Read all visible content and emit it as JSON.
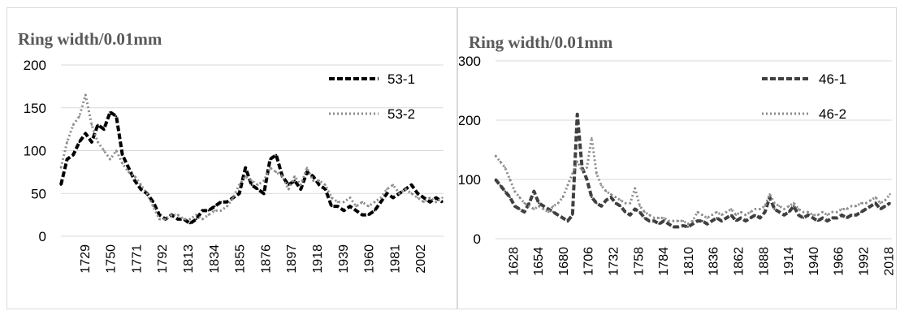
{
  "chart_data": [
    {
      "type": "line",
      "title": "Ring width/0.01mm",
      "xlabel": "",
      "ylabel": "Ring width/0.01mm",
      "ylim": [
        0,
        200
      ],
      "yticks": [
        "0",
        "50",
        "100",
        "150",
        "200"
      ],
      "x_tick_labels": [
        "1729",
        "1750",
        "1771",
        "1792",
        "1813",
        "1834",
        "1855",
        "1876",
        "1897",
        "1918",
        "1939",
        "1960",
        "1981",
        "2002"
      ],
      "xlim": [
        1710,
        2021
      ],
      "legend_position": "top-right",
      "grid": true,
      "series": [
        {
          "name": "53-1",
          "style": "dashed",
          "color": "#000000",
          "x": [
            1710,
            1715,
            1720,
            1725,
            1730,
            1735,
            1740,
            1745,
            1750,
            1755,
            1760,
            1765,
            1770,
            1775,
            1780,
            1785,
            1790,
            1795,
            1800,
            1805,
            1810,
            1815,
            1820,
            1825,
            1830,
            1835,
            1840,
            1845,
            1850,
            1855,
            1860,
            1865,
            1870,
            1875,
            1880,
            1885,
            1890,
            1895,
            1900,
            1905,
            1910,
            1915,
            1920,
            1925,
            1930,
            1935,
            1940,
            1945,
            1950,
            1955,
            1960,
            1965,
            1970,
            1975,
            1980,
            1985,
            1990,
            1995,
            2000,
            2005,
            2010,
            2015,
            2020
          ],
          "values": [
            60,
            90,
            95,
            110,
            120,
            110,
            130,
            125,
            145,
            140,
            95,
            80,
            65,
            55,
            50,
            40,
            25,
            20,
            25,
            20,
            20,
            15,
            20,
            30,
            30,
            35,
            40,
            40,
            45,
            50,
            80,
            60,
            55,
            50,
            90,
            95,
            70,
            60,
            65,
            55,
            75,
            70,
            60,
            55,
            35,
            35,
            30,
            35,
            30,
            25,
            25,
            30,
            40,
            50,
            45,
            50,
            55,
            60,
            50,
            45,
            40,
            45,
            40
          ]
        },
        {
          "name": "53-2",
          "style": "dotted",
          "color": "#8c8c8c",
          "x": [
            1710,
            1715,
            1720,
            1725,
            1730,
            1735,
            1740,
            1745,
            1750,
            1755,
            1760,
            1765,
            1770,
            1775,
            1780,
            1785,
            1790,
            1795,
            1800,
            1805,
            1810,
            1815,
            1820,
            1825,
            1830,
            1835,
            1840,
            1845,
            1850,
            1855,
            1860,
            1865,
            1870,
            1875,
            1880,
            1885,
            1890,
            1895,
            1900,
            1905,
            1910,
            1915,
            1920,
            1925,
            1930,
            1935,
            1940,
            1945,
            1950,
            1955,
            1960,
            1965,
            1970,
            1975,
            1980,
            1985,
            1990,
            1995,
            2000,
            2005,
            2010,
            2015,
            2020
          ],
          "values": [
            80,
            110,
            130,
            140,
            165,
            130,
            110,
            100,
            90,
            100,
            85,
            75,
            70,
            60,
            50,
            35,
            20,
            20,
            25,
            25,
            20,
            20,
            25,
            20,
            25,
            30,
            30,
            35,
            45,
            60,
            70,
            65,
            60,
            65,
            80,
            75,
            70,
            55,
            70,
            60,
            80,
            65,
            65,
            60,
            45,
            40,
            40,
            45,
            35,
            40,
            35,
            40,
            45,
            55,
            60,
            50,
            55,
            50,
            45,
            40,
            45,
            40,
            45
          ]
        }
      ]
    },
    {
      "type": "line",
      "title": "Ring width/0.01mm",
      "xlabel": "",
      "ylabel": "Ring width/0.01mm",
      "ylim": [
        0,
        300
      ],
      "yticks": [
        "0",
        "100",
        "200",
        "300"
      ],
      "x_tick_labels": [
        "1628",
        "1654",
        "1680",
        "1706",
        "1732",
        "1758",
        "1784",
        "1810",
        "1836",
        "1862",
        "1888",
        "1914",
        "1940",
        "1966",
        "1992",
        "2018"
      ],
      "xlim": [
        1610,
        2022
      ],
      "legend_position": "top-right",
      "grid": true,
      "series": [
        {
          "name": "46-1",
          "style": "dashed",
          "color": "#404040",
          "x": [
            1610,
            1615,
            1620,
            1625,
            1630,
            1635,
            1640,
            1645,
            1650,
            1655,
            1660,
            1665,
            1670,
            1675,
            1680,
            1685,
            1690,
            1695,
            1700,
            1705,
            1710,
            1715,
            1720,
            1725,
            1730,
            1735,
            1740,
            1745,
            1750,
            1755,
            1760,
            1765,
            1770,
            1775,
            1780,
            1785,
            1790,
            1795,
            1800,
            1805,
            1810,
            1815,
            1820,
            1825,
            1830,
            1835,
            1840,
            1845,
            1850,
            1855,
            1860,
            1865,
            1870,
            1875,
            1880,
            1885,
            1890,
            1895,
            1900,
            1905,
            1910,
            1915,
            1920,
            1925,
            1930,
            1935,
            1940,
            1945,
            1950,
            1955,
            1960,
            1965,
            1970,
            1975,
            1980,
            1985,
            1990,
            1995,
            2000,
            2005,
            2010,
            2015,
            2020
          ],
          "values": [
            100,
            90,
            80,
            70,
            55,
            50,
            45,
            60,
            80,
            60,
            55,
            50,
            45,
            40,
            35,
            30,
            40,
            210,
            120,
            100,
            70,
            60,
            55,
            65,
            70,
            60,
            55,
            45,
            40,
            50,
            45,
            35,
            30,
            30,
            25,
            30,
            25,
            20,
            20,
            22,
            20,
            25,
            30,
            30,
            25,
            30,
            35,
            30,
            35,
            40,
            30,
            35,
            30,
            35,
            40,
            35,
            45,
            70,
            50,
            45,
            40,
            45,
            55,
            40,
            35,
            40,
            35,
            30,
            35,
            30,
            35,
            35,
            40,
            35,
            40,
            40,
            45,
            50,
            55,
            60,
            50,
            55,
            60
          ]
        },
        {
          "name": "46-2",
          "style": "dotted",
          "color": "#8c8c8c",
          "x": [
            1610,
            1615,
            1620,
            1625,
            1630,
            1635,
            1640,
            1645,
            1650,
            1655,
            1660,
            1665,
            1670,
            1675,
            1680,
            1685,
            1690,
            1695,
            1700,
            1705,
            1710,
            1715,
            1720,
            1725,
            1730,
            1735,
            1740,
            1745,
            1750,
            1755,
            1760,
            1765,
            1770,
            1775,
            1780,
            1785,
            1790,
            1795,
            1800,
            1805,
            1810,
            1815,
            1820,
            1825,
            1830,
            1835,
            1840,
            1845,
            1850,
            1855,
            1860,
            1865,
            1870,
            1875,
            1880,
            1885,
            1890,
            1895,
            1900,
            1905,
            1910,
            1915,
            1920,
            1925,
            1930,
            1935,
            1940,
            1945,
            1950,
            1955,
            1960,
            1965,
            1970,
            1975,
            1980,
            1985,
            1990,
            1995,
            2000,
            2005,
            2010,
            2015,
            2020
          ],
          "values": [
            140,
            130,
            120,
            100,
            80,
            70,
            60,
            55,
            50,
            55,
            50,
            45,
            55,
            60,
            70,
            90,
            110,
            130,
            115,
            120,
            170,
            110,
            90,
            80,
            75,
            70,
            65,
            60,
            60,
            85,
            55,
            45,
            40,
            35,
            35,
            35,
            30,
            30,
            30,
            30,
            25,
            30,
            45,
            40,
            35,
            40,
            45,
            40,
            45,
            50,
            40,
            45,
            40,
            45,
            50,
            50,
            55,
            75,
            60,
            55,
            50,
            55,
            60,
            50,
            45,
            45,
            40,
            40,
            45,
            40,
            45,
            45,
            50,
            50,
            55,
            55,
            60,
            60,
            65,
            70,
            60,
            65,
            75
          ]
        }
      ]
    }
  ]
}
